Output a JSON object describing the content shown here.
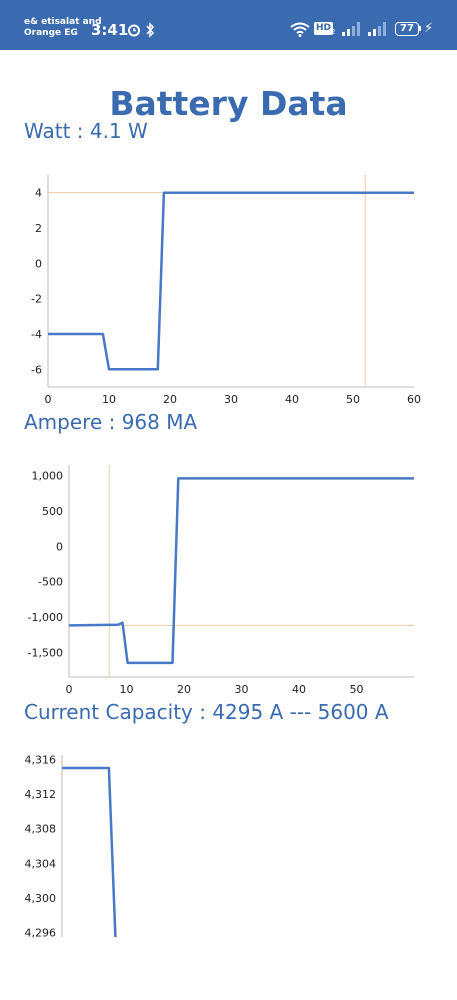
{
  "status_bar": {
    "carrier_line1": "e& etisalat and",
    "carrier_line2": "Orange EG",
    "time": "3:41",
    "hd_label": "HD",
    "hd_sub": "2",
    "battery_level": "77"
  },
  "page": {
    "title": "Battery Data"
  },
  "watt": {
    "label": "Watt : 4.1 W"
  },
  "ampere": {
    "label": "Ampere : 968 MA"
  },
  "capacity": {
    "label": "Current Capacity : 4295 A --- 5600 A"
  },
  "chart_data": [
    {
      "type": "line",
      "title": "",
      "xlabel": "",
      "ylabel": "",
      "xlim": [
        0,
        60
      ],
      "ylim": [
        -7,
        5
      ],
      "x_ticks": [
        "0",
        "10",
        "20",
        "30",
        "40",
        "50",
        "60"
      ],
      "y_ticks": [
        "4",
        "2",
        "0",
        "-2",
        "-4",
        "-6"
      ],
      "x_tick_values": [
        0,
        10,
        20,
        30,
        40,
        50,
        60
      ],
      "y_tick_values": [
        4,
        2,
        0,
        -2,
        -4,
        -6
      ],
      "crosshair": {
        "x": 52,
        "y": 4
      },
      "series": [
        {
          "color": "#4a78c8",
          "x": [
            0,
            9,
            10,
            18,
            19,
            60
          ],
          "y": [
            -4,
            -4,
            -6,
            -6,
            4,
            4
          ]
        }
      ]
    },
    {
      "type": "line",
      "title": "",
      "xlabel": "",
      "ylabel": "",
      "xlim": [
        0,
        60
      ],
      "ylim": [
        -1850,
        1150
      ],
      "x_ticks": [
        "0",
        "10",
        "20",
        "30",
        "40",
        "50"
      ],
      "y_ticks": [
        "1,000",
        "500",
        "0",
        "-500",
        "-1,000",
        "-1,500"
      ],
      "x_tick_values": [
        0,
        10,
        20,
        30,
        40,
        50
      ],
      "y_tick_values": [
        1000,
        500,
        0,
        -500,
        -1000,
        -1500
      ],
      "crosshair": {
        "x": 7,
        "y": -1120
      },
      "series": [
        {
          "color": "#4a78c8",
          "x": [
            0,
            8.5,
            9.3,
            10.2,
            18,
            19,
            60
          ],
          "y": [
            -1120,
            -1110,
            -1080,
            -1650,
            -1650,
            960,
            960
          ]
        }
      ]
    },
    {
      "type": "line",
      "title": "",
      "xlabel": "",
      "ylabel": "",
      "xlim": [
        0,
        60
      ],
      "ylim": [
        4295.5,
        4316.5
      ],
      "x_ticks": [],
      "y_ticks": [
        "4,316",
        "4,312",
        "4,308",
        "4,304",
        "4,300",
        "4,296"
      ],
      "y_tick_values": [
        4316,
        4312,
        4308,
        4304,
        4300,
        4296
      ],
      "series": [
        {
          "color": "#4a78c8",
          "x": [
            0,
            8,
            9.1
          ],
          "y": [
            4315,
            4315,
            4295.5
          ]
        }
      ]
    }
  ]
}
